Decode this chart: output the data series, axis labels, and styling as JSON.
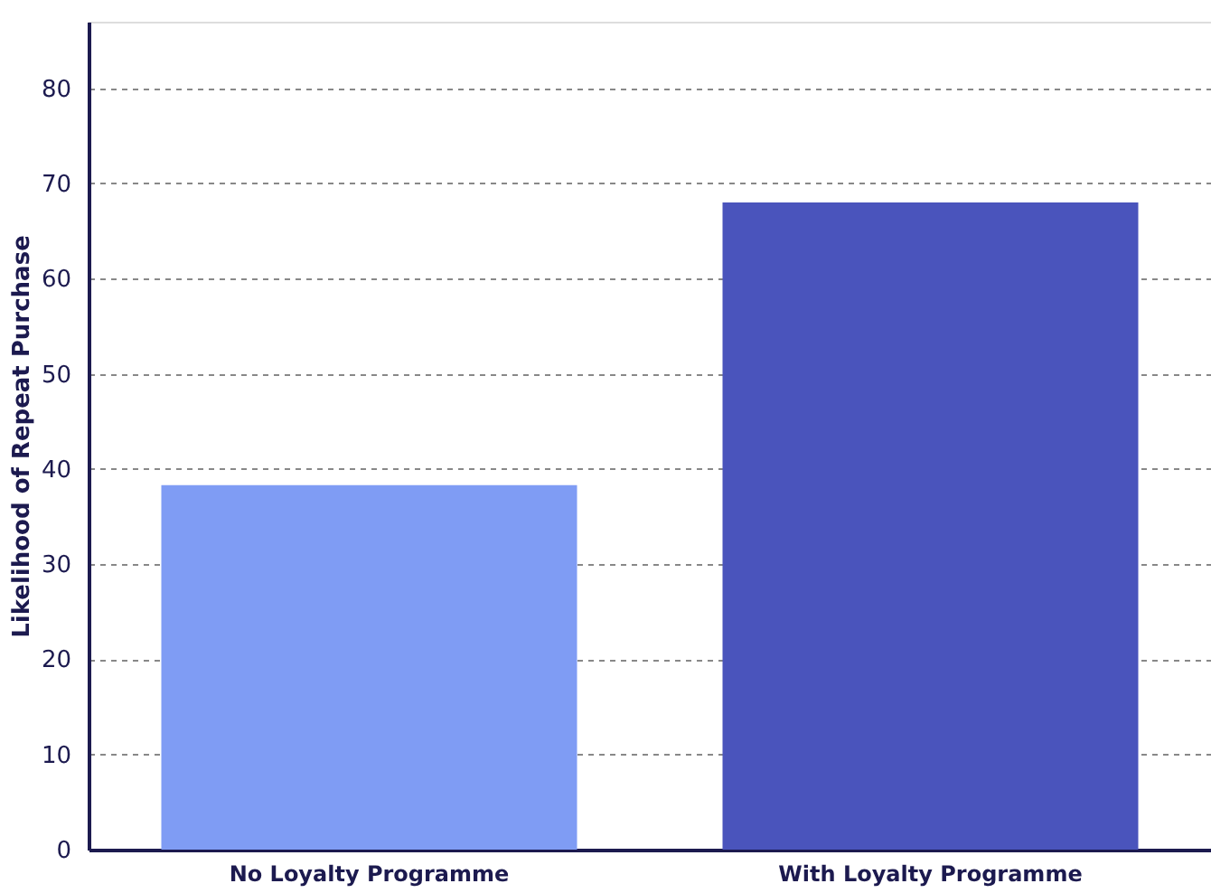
{
  "chart_data": {
    "type": "bar",
    "ylabel": "Likelihood of Repeat Purchase",
    "categories": [
      "No Loyalty Programme",
      "With Loyalty Programme"
    ],
    "values": [
      38.3,
      68
    ],
    "colors": [
      "#7f9cf4",
      "#4a54bc"
    ],
    "ylim": [
      0,
      87
    ],
    "yticks": [
      0,
      10,
      20,
      30,
      40,
      50,
      60,
      70,
      80
    ],
    "grid": "y"
  }
}
